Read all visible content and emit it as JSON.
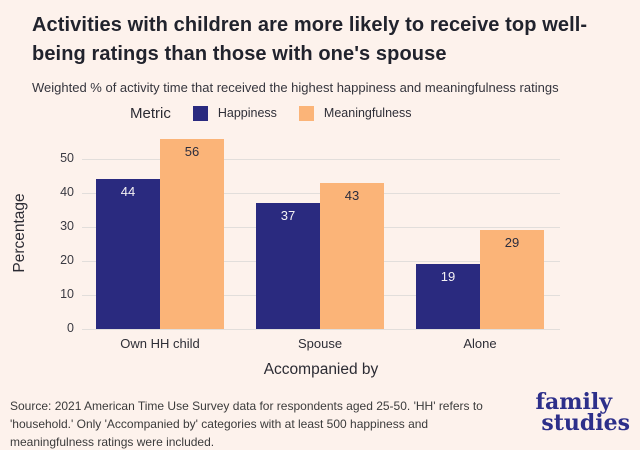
{
  "header": {
    "title": "Activities with children are more likely to receive top well-being ratings than those with one's spouse",
    "subtitle": "Weighted % of activity time that received the highest happiness and meaningfulness ratings"
  },
  "legend": {
    "title": "Metric",
    "items": [
      {
        "label": "Happiness",
        "color": "#2a2a7f"
      },
      {
        "label": "Meaningfulness",
        "color": "#fbb478"
      }
    ]
  },
  "chart_data": {
    "type": "bar",
    "title": "Activities with children are more likely to receive top well-being ratings than those with one's spouse",
    "categories": [
      "Own HH child",
      "Spouse",
      "Alone"
    ],
    "series": [
      {
        "name": "Happiness",
        "color": "#2a2a7f",
        "values": [
          44,
          37,
          19
        ],
        "label_color": "#f5f2f4"
      },
      {
        "name": "Meaningfulness",
        "color": "#fbb478",
        "values": [
          56,
          43,
          29
        ],
        "label_color": "#2b2d3e"
      }
    ],
    "xlabel": "Accompanied by",
    "ylabel": "Percentage",
    "yticks": [
      0,
      10,
      20,
      30,
      40,
      50
    ],
    "ylim": [
      0,
      58.5
    ],
    "grid": true,
    "legend_position": "top",
    "value_labels": "inside-top"
  },
  "footer": {
    "source_lines": [
      "Source: 2021 American Time Use Survey data for respondents aged 25-50. 'HH' refers to",
      "'household.' Only 'Accompanied by' categories with at least 500 happiness and",
      "meaningfulness ratings were included."
    ],
    "logo": {
      "line1": "family",
      "line2": "studies",
      "color": "#2d2f8a"
    }
  },
  "colors": {
    "background": "#fdf2ec",
    "gridline": "#e2dedb"
  }
}
